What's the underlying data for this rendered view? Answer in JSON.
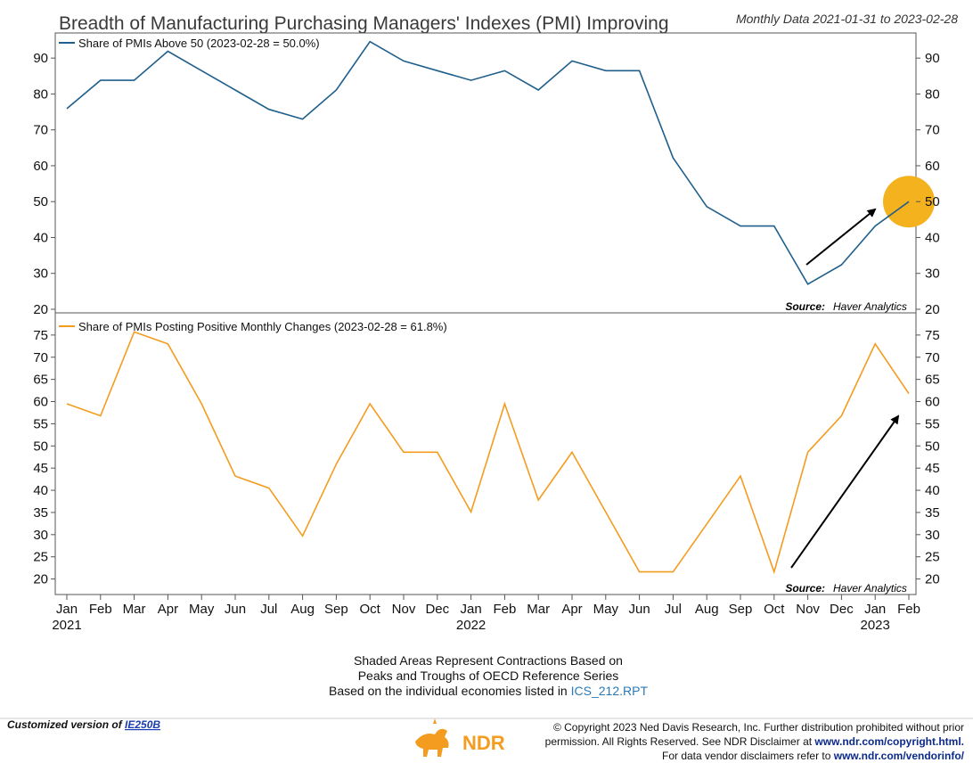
{
  "header": {
    "title": "Breadth of Manufacturing Purchasing Managers' Indexes (PMI) Improving",
    "date_range": "Monthly Data 2021-01-31 to 2023-02-28"
  },
  "source": {
    "label": "Source:",
    "name": "Haver Analytics"
  },
  "notes": {
    "line1": "Shaded Areas Represent Contractions Based on",
    "line2": "Peaks and Troughs of OECD Reference Series",
    "line3_prefix": "Based on the individual economies listed in",
    "line3_link": "ICS_212.RPT"
  },
  "footer": {
    "custom_prefix": "Customized version of",
    "custom_link": "IE250B",
    "logo_text": "NDR",
    "copyright_line1": "© Copyright 2023 Ned Davis Research, Inc. Further distribution prohibited without prior",
    "copyright_line2_prefix": "permission. All Rights Reserved. See NDR Disclaimer at",
    "copyright_line2_link": "www.ndr.com/copyright.html.",
    "copyright_line3_prefix": "For data vendor disclaimers refer to",
    "copyright_line3_link": "www.ndr.com/vendorinfo/"
  },
  "chart_data": [
    {
      "type": "line",
      "panel": "top",
      "x": [
        "Jan",
        "Feb",
        "Mar",
        "Apr",
        "May",
        "Jun",
        "Jul",
        "Aug",
        "Sep",
        "Oct",
        "Nov",
        "Dec",
        "Jan",
        "Feb",
        "Mar",
        "Apr",
        "May",
        "Jun",
        "Jul",
        "Aug",
        "Sep",
        "Oct",
        "Nov",
        "Dec",
        "Jan",
        "Feb"
      ],
      "year_labels": [
        {
          "index": 0,
          "label": "2021"
        },
        {
          "index": 12,
          "label": "2022"
        },
        {
          "index": 24,
          "label": "2023"
        }
      ],
      "series": [
        {
          "name": "Share of PMIs Above 50 (2023-02-28 = 50.0%)",
          "color": "#1f5f8b",
          "values": [
            75.9,
            83.8,
            83.8,
            91.9,
            86.5,
            81.1,
            75.7,
            73.0,
            81.1,
            94.6,
            89.2,
            86.5,
            83.8,
            86.5,
            81.1,
            89.2,
            86.5,
            86.5,
            62.2,
            48.6,
            43.2,
            43.2,
            27.0,
            32.4,
            43.2,
            50.0
          ]
        }
      ],
      "ylim": [
        19,
        97
      ],
      "yticks": [
        20,
        30,
        40,
        50,
        60,
        70,
        80,
        90
      ],
      "highlight": {
        "index": 25,
        "value": 50.0,
        "color": "#f5b21f"
      },
      "grid": false,
      "legend_placement": "top-left"
    },
    {
      "type": "line",
      "panel": "bottom",
      "x": [
        "Jan",
        "Feb",
        "Mar",
        "Apr",
        "May",
        "Jun",
        "Jul",
        "Aug",
        "Sep",
        "Oct",
        "Nov",
        "Dec",
        "Jan",
        "Feb",
        "Mar",
        "Apr",
        "May",
        "Jun",
        "Jul",
        "Aug",
        "Sep",
        "Oct",
        "Nov",
        "Dec",
        "Jan",
        "Feb"
      ],
      "year_labels": [
        {
          "index": 0,
          "label": "2021"
        },
        {
          "index": 12,
          "label": "2022"
        },
        {
          "index": 24,
          "label": "2023"
        }
      ],
      "series": [
        {
          "name": "Share of PMIs Posting Positive Monthly Changes (2023-02-28 = 61.8%)",
          "color": "#f39c1f",
          "values": [
            59.5,
            56.8,
            75.7,
            73.0,
            59.5,
            43.2,
            40.5,
            29.7,
            45.9,
            59.5,
            48.6,
            48.6,
            35.1,
            59.5,
            37.8,
            48.6,
            35.1,
            21.6,
            21.6,
            32.4,
            43.2,
            21.6,
            48.6,
            56.8,
            73.0,
            61.8
          ]
        }
      ],
      "ylim": [
        16.5,
        80
      ],
      "yticks": [
        20,
        25,
        30,
        35,
        40,
        45,
        50,
        55,
        60,
        65,
        70,
        75
      ],
      "grid": false,
      "legend_placement": "top-left"
    }
  ]
}
